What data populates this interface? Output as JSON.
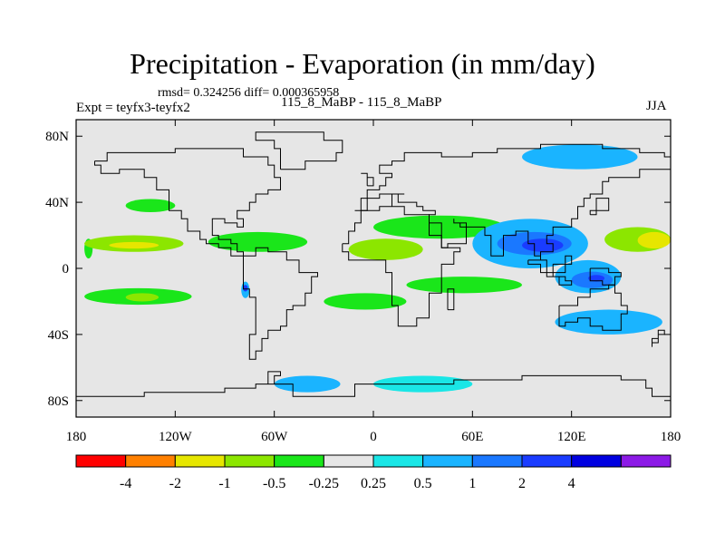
{
  "title": "Precipitation - Evaporation (in mm/day)",
  "stats": "rmsd= 0.324256 diff= 0.000365958",
  "experiment": "Expt = teyfx3-teyfx2",
  "period": "115_8_MaBP - 115_8_MaBP",
  "season": "JJA",
  "map": {
    "projection": "cylindrical equidistant",
    "lon_range": [
      -180,
      180
    ],
    "lat_range": [
      -90,
      90
    ],
    "background_color": "#e6e6e6"
  },
  "x_ticks": [
    {
      "value": -180,
      "label": "180"
    },
    {
      "value": -120,
      "label": "120W"
    },
    {
      "value": -60,
      "label": "60W"
    },
    {
      "value": 0,
      "label": "0"
    },
    {
      "value": 60,
      "label": "60E"
    },
    {
      "value": 120,
      "label": "120E"
    },
    {
      "value": 180,
      "label": "180"
    }
  ],
  "y_ticks": [
    {
      "value": 80,
      "label": "80N"
    },
    {
      "value": 40,
      "label": "40N"
    },
    {
      "value": 0,
      "label": "0"
    },
    {
      "value": -40,
      "label": "40S"
    },
    {
      "value": -80,
      "label": "80S"
    }
  ],
  "colorbar": {
    "colors": [
      "#ff0000",
      "#ff8000",
      "#e6e600",
      "#8ce600",
      "#1ae61a",
      "#e6e6e6",
      "#1ae6e6",
      "#1ab4ff",
      "#1a78ff",
      "#1a3cff",
      "#0000e0",
      "#8c1ae6"
    ],
    "labels": [
      "-4",
      "-2",
      "-1",
      "-0.5",
      "-0.25",
      "0.25",
      "0.5",
      "1",
      "2",
      "4"
    ]
  },
  "chart_data": {
    "type": "heatmap",
    "title": "Precipitation - Evaporation (in mm/day)",
    "subtitle": "rmsd= 0.324256 diff= 0.000365958",
    "xlabel": "",
    "ylabel": "",
    "xlim": [
      -180,
      180
    ],
    "ylim": [
      -90,
      90
    ],
    "contour_levels": [
      -4,
      -2,
      -1,
      -0.5,
      -0.25,
      0.25,
      0.5,
      1,
      2,
      4
    ],
    "regions": [
      {
        "level": -0.25,
        "lon": [
          -175,
          -170
        ],
        "lat": [
          6,
          18
        ]
      },
      {
        "level": -0.5,
        "lon": [
          -175,
          -115
        ],
        "lat": [
          10,
          20
        ]
      },
      {
        "level": -1,
        "lon": [
          -160,
          -130
        ],
        "lat": [
          12,
          16
        ]
      },
      {
        "level": -0.25,
        "lon": [
          -150,
          -120
        ],
        "lat": [
          34,
          42
        ]
      },
      {
        "level": -0.25,
        "lon": [
          -175,
          -110
        ],
        "lat": [
          -22,
          -12
        ]
      },
      {
        "level": -0.5,
        "lon": [
          -150,
          -130
        ],
        "lat": [
          -20,
          -15
        ]
      },
      {
        "level": -0.25,
        "lon": [
          -100,
          -40
        ],
        "lat": [
          10,
          22
        ]
      },
      {
        "level": 0.5,
        "lon": [
          -80,
          -75
        ],
        "lat": [
          -18,
          -8
        ]
      },
      {
        "level": 2,
        "lon": [
          -79,
          -76
        ],
        "lat": [
          -14,
          -10
        ]
      },
      {
        "level": -0.5,
        "lon": [
          -15,
          30
        ],
        "lat": [
          5,
          18
        ]
      },
      {
        "level": -0.25,
        "lon": [
          0,
          80
        ],
        "lat": [
          18,
          32
        ]
      },
      {
        "level": 0.5,
        "lon": [
          60,
          130
        ],
        "lat": [
          0,
          30
        ]
      },
      {
        "level": 1,
        "lon": [
          75,
          120
        ],
        "lat": [
          8,
          22
        ]
      },
      {
        "level": 2,
        "lon": [
          90,
          115
        ],
        "lat": [
          10,
          18
        ]
      },
      {
        "level": 0.5,
        "lon": [
          110,
          150
        ],
        "lat": [
          -15,
          5
        ]
      },
      {
        "level": 1,
        "lon": [
          120,
          145
        ],
        "lat": [
          -12,
          -2
        ]
      },
      {
        "level": 2,
        "lon": [
          130,
          140
        ],
        "lat": [
          -8,
          -4
        ]
      },
      {
        "level": -0.5,
        "lon": [
          140,
          180
        ],
        "lat": [
          10,
          25
        ]
      },
      {
        "level": -1,
        "lon": [
          160,
          180
        ],
        "lat": [
          12,
          22
        ]
      },
      {
        "level": -0.25,
        "lon": [
          20,
          90
        ],
        "lat": [
          -15,
          -5
        ]
      },
      {
        "level": -0.25,
        "lon": [
          -30,
          20
        ],
        "lat": [
          -25,
          -15
        ]
      },
      {
        "level": 0.5,
        "lon": [
          110,
          175
        ],
        "lat": [
          -40,
          -25
        ]
      },
      {
        "level": 0.5,
        "lon": [
          90,
          160
        ],
        "lat": [
          60,
          75
        ]
      },
      {
        "level": 0.5,
        "lon": [
          -60,
          -20
        ],
        "lat": [
          -75,
          -65
        ]
      },
      {
        "level": 0.25,
        "lon": [
          0,
          60
        ],
        "lat": [
          -75,
          -65
        ]
      }
    ]
  }
}
